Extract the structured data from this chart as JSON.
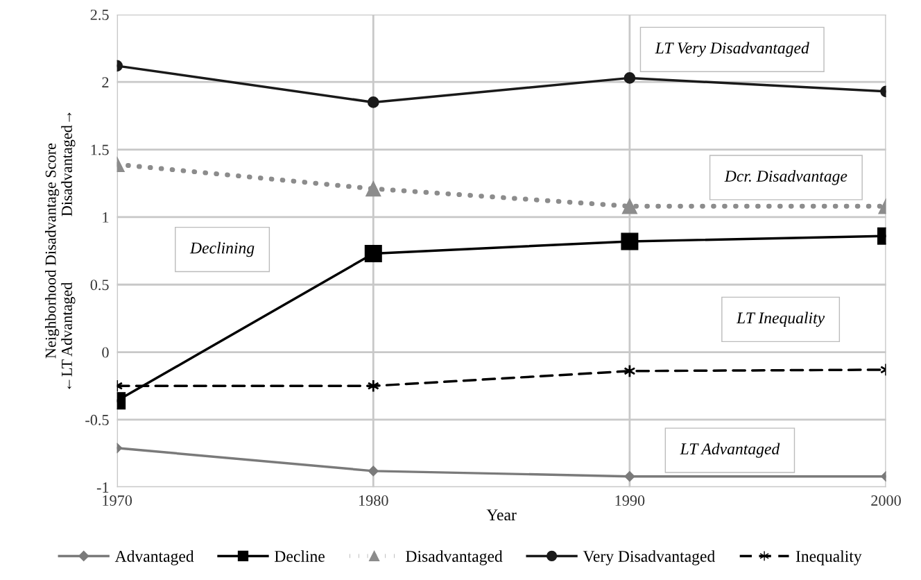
{
  "chart_data": {
    "type": "line",
    "xlabel": "Year",
    "ylabel": "Neighborhood Disadvantage Score\n←LT Advantaged                 Disadvantaged→",
    "x": [
      1970,
      1980,
      1990,
      2000
    ],
    "xlim": [
      1970,
      2000
    ],
    "xticks": [
      1970,
      1980,
      1990,
      2000
    ],
    "ylim": [
      -1,
      2.5
    ],
    "yticks": [
      -1,
      -0.5,
      0,
      0.5,
      1,
      1.5,
      2,
      2.5
    ],
    "grid": true,
    "legend": "bottom",
    "series": [
      {
        "name": "Advantaged",
        "color": "#7a7a7a",
        "marker": "diamond",
        "line_style": "solid",
        "values": [
          -0.71,
          -0.88,
          -0.92,
          -0.92
        ]
      },
      {
        "name": "Decline",
        "color": "#000000",
        "marker": "square",
        "line_style": "solid",
        "values": [
          -0.36,
          0.73,
          0.82,
          0.86
        ]
      },
      {
        "name": "Disadvantaged",
        "color": "#8c8c8c",
        "marker": "triangle",
        "line_style": "dotted",
        "values": [
          1.39,
          1.21,
          1.08,
          1.08
        ]
      },
      {
        "name": "Very Disadvantaged",
        "color": "#1a1a1a",
        "marker": "circle",
        "line_style": "solid",
        "values": [
          2.12,
          1.85,
          2.03,
          1.93
        ]
      },
      {
        "name": "Inequality",
        "color": "#000000",
        "marker": "cross",
        "line_style": "dashed",
        "values": [
          -0.25,
          -0.25,
          -0.14,
          -0.13
        ]
      }
    ],
    "annotations": [
      "LT Very Disadvantaged",
      "Dcr. Disadvantage",
      "Declining",
      "LT Inequality",
      "LT Advantaged"
    ]
  }
}
